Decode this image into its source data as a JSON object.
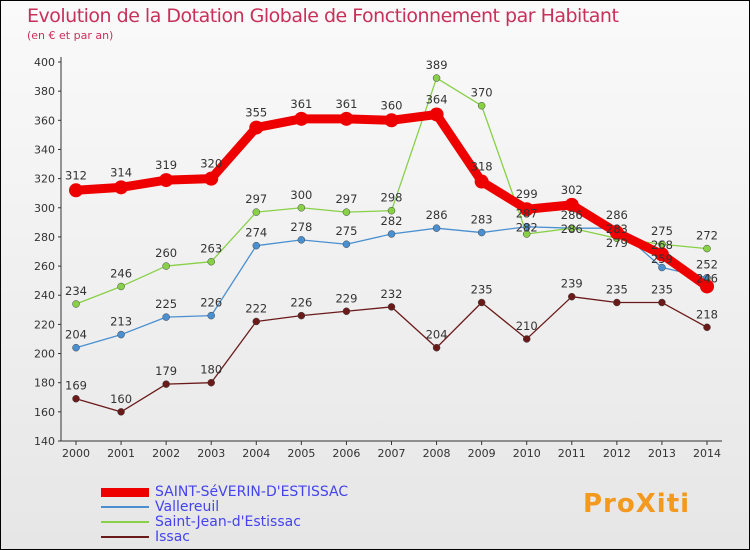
{
  "title": "Evolution de la Dotation Globale de Fonctionnement par Habitant",
  "subtitle": "(en € et par an)",
  "logo": "ProXiti",
  "chart_data": {
    "type": "line",
    "title": "Evolution de la Dotation Globale de Fonctionnement par Habitant",
    "subtitle": "(en € et par an)",
    "x": [
      2000,
      2001,
      2002,
      2003,
      2004,
      2005,
      2006,
      2007,
      2008,
      2009,
      2010,
      2011,
      2012,
      2013,
      2014
    ],
    "ylim": [
      140,
      400
    ],
    "yticks": [
      140,
      160,
      180,
      200,
      220,
      240,
      260,
      280,
      300,
      320,
      340,
      360,
      380,
      400
    ],
    "legend_position": "bottom-left",
    "series": [
      {
        "name": "SAINT-SéVERIN-D'ESTISSAC",
        "color": "#ee0000",
        "values": [
          312,
          314,
          319,
          320,
          355,
          361,
          361,
          360,
          364,
          318,
          299,
          302,
          283,
          268,
          246
        ]
      },
      {
        "name": "Vallereuil",
        "color": "#4a90d0",
        "values": [
          204,
          213,
          225,
          226,
          274,
          278,
          275,
          282,
          286,
          283,
          287,
          286,
          286,
          259,
          252
        ]
      },
      {
        "name": "Saint-Jean-d'Estissac",
        "color": "#88d048",
        "values": [
          234,
          246,
          260,
          263,
          297,
          300,
          297,
          298,
          389,
          370,
          282,
          286,
          279,
          275,
          272
        ]
      },
      {
        "name": "Issac",
        "color": "#6b1a1a",
        "values": [
          169,
          160,
          179,
          180,
          222,
          226,
          229,
          232,
          204,
          235,
          210,
          239,
          235,
          235,
          218
        ]
      }
    ]
  }
}
